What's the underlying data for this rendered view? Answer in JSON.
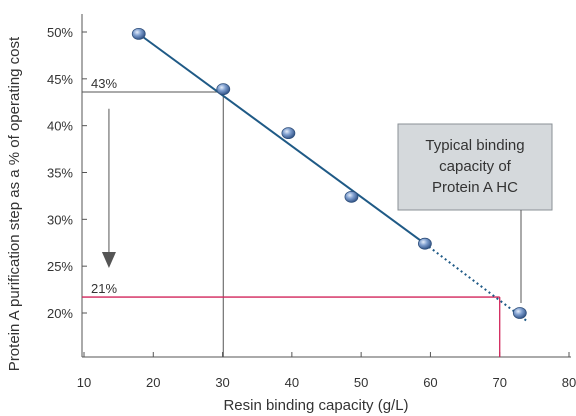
{
  "chart_data": {
    "type": "scatter",
    "xlabel": "Resin binding capacity (g/L)",
    "ylabel": "Protein A purification step as a % of operating cost",
    "xlim": [
      10,
      80
    ],
    "ylim": [
      17,
      53
    ],
    "xticks": [
      "10",
      "20",
      "30",
      "40",
      "50",
      "60",
      "70",
      "80"
    ],
    "yticks": [
      "20%",
      "25%",
      "30%",
      "35%",
      "40%",
      "45%",
      "50%"
    ],
    "points": [
      {
        "x": 17.9,
        "y": 49.8
      },
      {
        "x": 30.1,
        "y": 43.9
      },
      {
        "x": 39.5,
        "y": 39.2
      },
      {
        "x": 48.6,
        "y": 32.4
      },
      {
        "x": 59.2,
        "y": 27.4
      },
      {
        "x": 72.9,
        "y": 20.0
      }
    ],
    "trend_solid": [
      {
        "x": 17.9,
        "y": 49.8
      },
      {
        "x": 59.2,
        "y": 27.4
      }
    ],
    "trend_dotted": [
      {
        "x": 59.2,
        "y": 27.4
      },
      {
        "x": 74.0,
        "y": 19.1
      }
    ],
    "annotations": {
      "upper_label": "43%",
      "upper_y": 43.6,
      "upper_x": 30.1,
      "lower_label": "21%",
      "lower_y": 21.7,
      "lower_x": 70.0,
      "arrow_x": 13.6,
      "arrow_from_y": 41.8,
      "arrow_to_y": 24.8
    },
    "callout": {
      "lines": [
        "Typical binding",
        "capacity of",
        "Protein A HC"
      ],
      "box_fill": "#d5d9dc",
      "box_stroke": "#8a9096"
    },
    "colors": {
      "trend_line": "#1f5a86",
      "marker": "#6b8fc2",
      "marker_highlight": "#cfdcf2",
      "marker_edge": "#2f4f7a",
      "red_line": "#d2245a",
      "guide_line": "#555555",
      "axis": "#555555"
    },
    "grid": false,
    "legend": "none"
  }
}
